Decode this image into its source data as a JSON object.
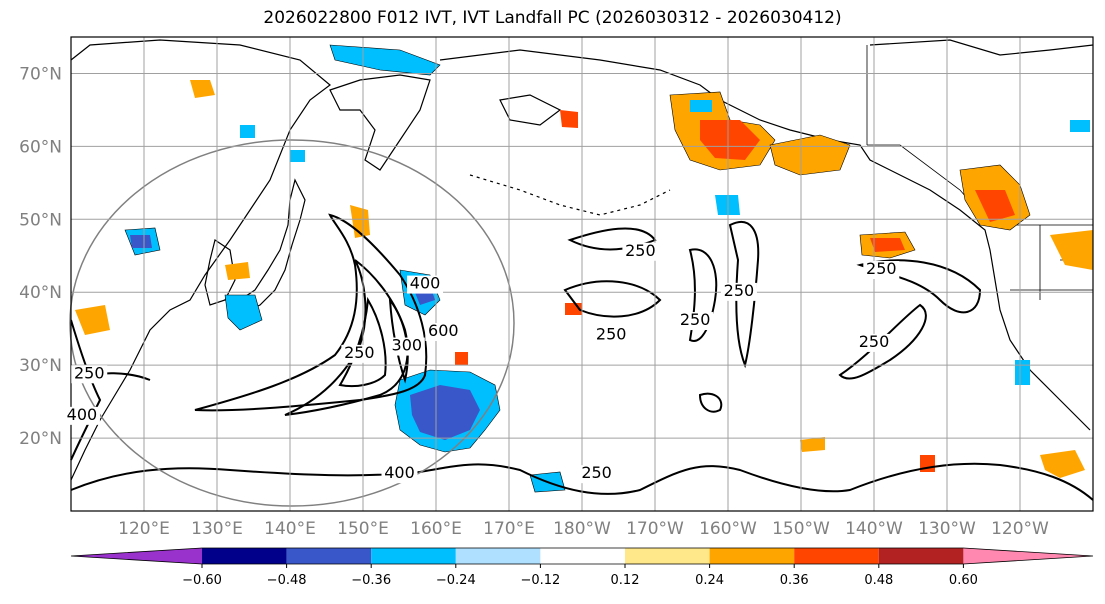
{
  "title": "2026022800 F012 IVT, IVT Landfall PC (2026030312 - 2026030412)",
  "latitude_labels": [
    "70°N",
    "60°N",
    "50°N",
    "40°N",
    "30°N",
    "20°N"
  ],
  "longitude_labels": [
    "120°E",
    "130°E",
    "140°E",
    "150°E",
    "160°E",
    "170°E",
    "180°W",
    "170°W",
    "160°W",
    "150°W",
    "140°W",
    "130°W",
    "120°W"
  ],
  "colorbar": {
    "ticks": [
      "−0.60",
      "−0.48",
      "−0.36",
      "−0.24",
      "−0.12",
      "0.12",
      "0.24",
      "0.36",
      "0.48",
      "0.60"
    ],
    "colors": [
      "#9932cc",
      "#00008b",
      "#3a57c9",
      "#00bfff",
      "#b0e0ff",
      "#ffffff",
      "#ffe88a",
      "#ffa500",
      "#ff4500",
      "#b22222",
      "#ff88b0"
    ]
  },
  "contour_labels": [
    {
      "text": "250",
      "lon": 112.5,
      "lat": 28.2
    },
    {
      "text": "400",
      "lon": 111.5,
      "lat": 22.5
    },
    {
      "text": "250",
      "lon": 149.5,
      "lat": 31
    },
    {
      "text": "300",
      "lon": 156,
      "lat": 32
    },
    {
      "text": "600",
      "lon": 161,
      "lat": 34
    },
    {
      "text": "400",
      "lon": 158.5,
      "lat": 40.5
    },
    {
      "text": "400",
      "lon": 155,
      "lat": 14.5
    },
    {
      "text": "250",
      "lon": -172,
      "lat": 45
    },
    {
      "text": "250",
      "lon": -176,
      "lat": 33.5
    },
    {
      "text": "250",
      "lon": -164.5,
      "lat": 35.5
    },
    {
      "text": "250",
      "lon": -158.5,
      "lat": 39.5
    },
    {
      "text": "250",
      "lon": -139,
      "lat": 42.5
    },
    {
      "text": "250",
      "lon": -140,
      "lat": 32.5
    },
    {
      "text": "250",
      "lon": -178,
      "lat": 14.5
    }
  ]
}
